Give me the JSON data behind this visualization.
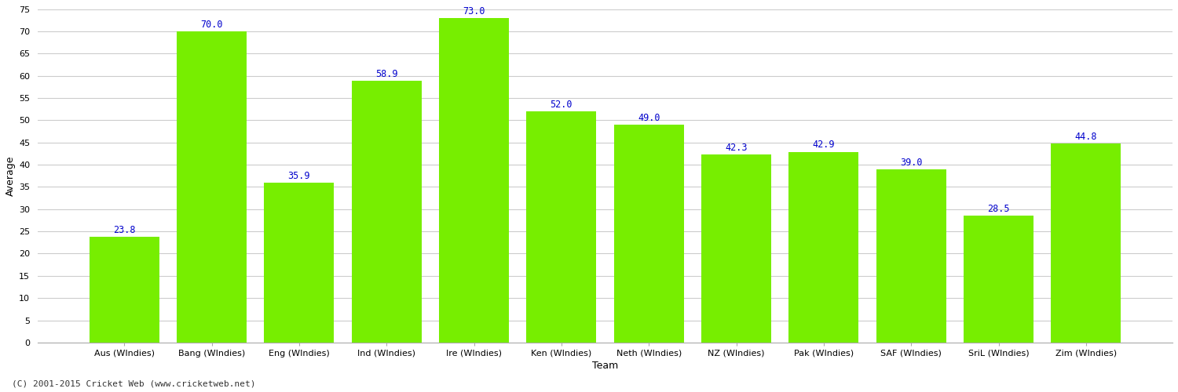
{
  "categories": [
    "Aus (WIndies)",
    "Bang (WIndies)",
    "Eng (WIndies)",
    "Ind (WIndies)",
    "Ire (WIndies)",
    "Ken (WIndies)",
    "Neth (WIndies)",
    "NZ (WIndies)",
    "Pak (WIndies)",
    "SAF (WIndies)",
    "SriL (WIndies)",
    "Zim (WIndies)"
  ],
  "values": [
    23.8,
    70.0,
    35.9,
    58.9,
    73.0,
    52.0,
    49.0,
    42.3,
    42.9,
    39.0,
    28.5,
    44.8
  ],
  "bar_color": "#77ee00",
  "bar_edge_color": "#77ee00",
  "xlabel": "Team",
  "ylabel": "Average",
  "ylim": [
    0,
    75
  ],
  "yticks": [
    0,
    5,
    10,
    15,
    20,
    25,
    30,
    35,
    40,
    45,
    50,
    55,
    60,
    65,
    70,
    75
  ],
  "value_label_color": "#0000cc",
  "value_label_fontsize": 8.5,
  "xlabel_fontsize": 9,
  "ylabel_fontsize": 9,
  "tick_label_fontsize": 8,
  "background_color": "#ffffff",
  "grid_color": "#cccccc",
  "footer_text": "(C) 2001-2015 Cricket Web (www.cricketweb.net)",
  "footer_fontsize": 8,
  "bar_width": 0.8
}
